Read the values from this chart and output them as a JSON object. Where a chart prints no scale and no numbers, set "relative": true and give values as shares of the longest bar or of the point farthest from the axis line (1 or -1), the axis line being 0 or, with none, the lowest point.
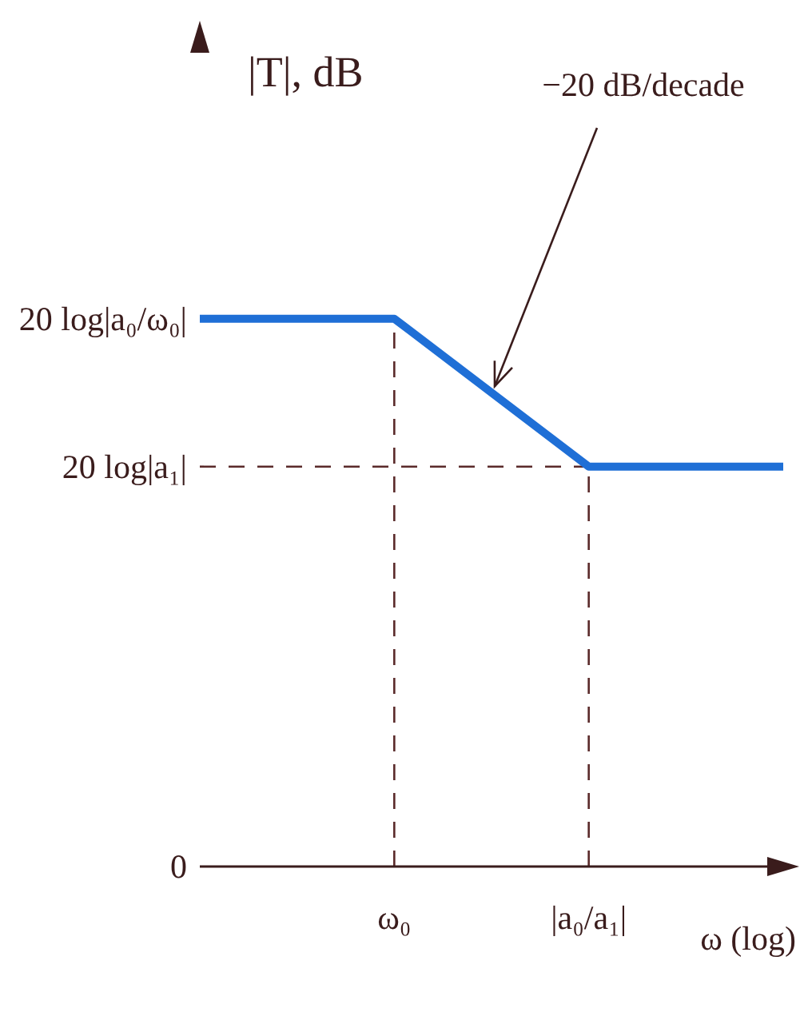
{
  "chart_data": {
    "type": "line",
    "xlabel": "ω (log)",
    "categories": [
      null,
      "ω₀",
      "|a₀/a₁|",
      null
    ],
    "values": [
      1,
      1,
      0.73,
      0.73
    ],
    "color": "#1f6fd6",
    "relative": true,
    "marker": "none",
    "line_style": "solid",
    "ref_lines": [
      {
        "axis": "y",
        "value": 0.73,
        "label": "20 log|a₁|",
        "line_style": "dashed",
        "color": "#5a2a2a"
      },
      {
        "axis": "x",
        "value": "ω₀",
        "line_style": "dashed",
        "color": "#5a2a2a"
      },
      {
        "axis": "x",
        "value": "|a₀/a₁|",
        "line_style": "dashed",
        "color": "#5a2a2a"
      }
    ],
    "annotations": [
      "20 log|a₀/ω₀|",
      "0",
      "−20 dB/decade",
      "|T|, dB"
    ]
  }
}
